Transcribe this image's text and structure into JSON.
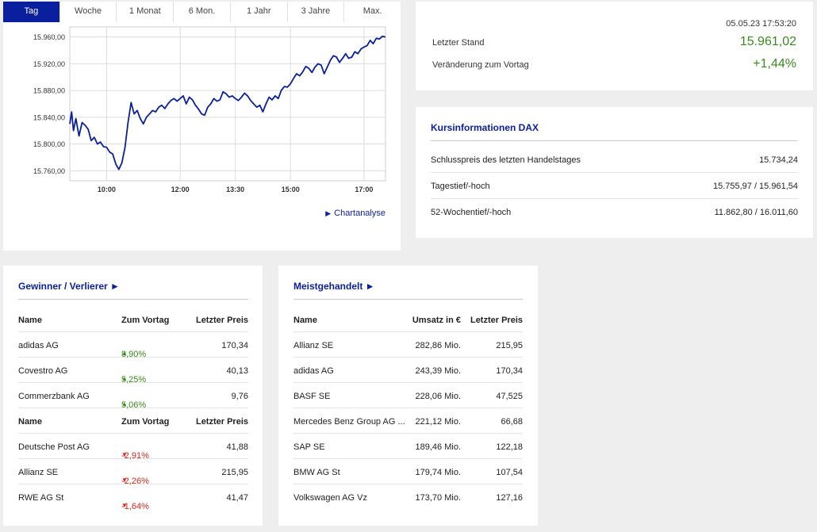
{
  "tabs": [
    "Tag",
    "Woche",
    "1 Monat",
    "6 Mon.",
    "1 Jahr",
    "3 Jahre",
    "Max."
  ],
  "active_tab": 0,
  "chart_link": "Chartanalyse",
  "chart_data": {
    "type": "line",
    "title": "",
    "xlabel": "",
    "ylabel": "",
    "x_ticks": [
      "10:00",
      "12:00",
      "13:30",
      "15:00",
      "17:00"
    ],
    "y_ticks": [
      "15.760,00",
      "15.800,00",
      "15.840,00",
      "15.880,00",
      "15.920,00",
      "15.960,00"
    ],
    "ylim": [
      15745,
      15975
    ],
    "xlim": [
      "09:00",
      "17:35"
    ],
    "grid": true,
    "series": [
      {
        "color": "#0a1f9e",
        "x": [
          "09:00",
          "09:03",
          "09:06",
          "09:10",
          "09:15",
          "09:20",
          "09:25",
          "09:30",
          "09:35",
          "09:40",
          "09:45",
          "09:50",
          "09:55",
          "10:00",
          "10:05",
          "10:10",
          "10:15",
          "10:20",
          "10:25",
          "10:30",
          "10:35",
          "10:40",
          "10:45",
          "10:50",
          "10:55",
          "11:00",
          "11:05",
          "11:10",
          "11:15",
          "11:20",
          "11:25",
          "11:30",
          "11:35",
          "11:40",
          "11:45",
          "11:50",
          "11:55",
          "12:00",
          "12:05",
          "12:10",
          "12:15",
          "12:20",
          "12:25",
          "12:30",
          "12:35",
          "12:40",
          "12:45",
          "12:50",
          "12:55",
          "13:00",
          "13:05",
          "13:10",
          "13:15",
          "13:20",
          "13:25",
          "13:30",
          "13:35",
          "13:40",
          "13:45",
          "13:50",
          "13:55",
          "14:00",
          "14:05",
          "14:10",
          "14:15",
          "14:20",
          "14:25",
          "14:30",
          "14:35",
          "14:40",
          "14:45",
          "14:50",
          "14:55",
          "15:00",
          "15:05",
          "15:10",
          "15:15",
          "15:20",
          "15:25",
          "15:30",
          "15:35",
          "15:40",
          "15:45",
          "15:50",
          "15:55",
          "16:00",
          "16:05",
          "16:10",
          "16:15",
          "16:20",
          "16:25",
          "16:30",
          "16:35",
          "16:40",
          "16:45",
          "16:50",
          "16:55",
          "17:00",
          "17:05",
          "17:10",
          "17:15",
          "17:20",
          "17:25",
          "17:30",
          "17:35"
        ],
        "y": [
          15830,
          15848,
          15820,
          15838,
          15812,
          15832,
          15828,
          15822,
          15805,
          15810,
          15800,
          15803,
          15796,
          15795,
          15788,
          15785,
          15770,
          15762,
          15772,
          15795,
          15832,
          15862,
          15845,
          15850,
          15838,
          15830,
          15840,
          15845,
          15850,
          15848,
          15855,
          15858,
          15853,
          15860,
          15865,
          15868,
          15864,
          15868,
          15872,
          15860,
          15870,
          15866,
          15858,
          15852,
          15845,
          15843,
          15855,
          15860,
          15868,
          15864,
          15866,
          15878,
          15875,
          15870,
          15872,
          15868,
          15865,
          15870,
          15876,
          15872,
          15865,
          15860,
          15855,
          15858,
          15848,
          15860,
          15870,
          15866,
          15872,
          15868,
          15880,
          15886,
          15885,
          15890,
          15898,
          15905,
          15902,
          15908,
          15916,
          15913,
          15907,
          15915,
          15920,
          15918,
          15905,
          15915,
          15925,
          15932,
          15930,
          15922,
          15928,
          15935,
          15928,
          15930,
          15938,
          15935,
          15942,
          15945,
          15947,
          15955,
          15950,
          15958,
          15957,
          15961,
          15960
        ]
      }
    ]
  },
  "quote": {
    "timestamp": "05.05.23 17:53:20",
    "last_label": "Letzter Stand",
    "last_value": "15.961,02",
    "change_label": "Veränderung zum Vortag",
    "change_value": "+1,44%"
  },
  "info": {
    "title": "Kursinformationen DAX",
    "rows": [
      {
        "label": "Schlusspreis des letzten Handelstages",
        "value": "15.734,24"
      },
      {
        "label": "Tagestief/-hoch",
        "value": "15.755,97 / 15.961,54"
      },
      {
        "label": "52-Wochentief/-hoch",
        "value": "11.862,80 / 16.011,60"
      }
    ]
  },
  "gainers_losers": {
    "title": "Gewinner / Verlierer ►",
    "header": [
      "Name",
      "Zum Vortag",
      "Letzter Preis"
    ],
    "gainers": [
      {
        "name": "adidas AG",
        "change": "8,90%",
        "price": "170,34"
      },
      {
        "name": "Covestro AG",
        "change": "5,25%",
        "price": "40,13"
      },
      {
        "name": "Commerzbank AG",
        "change": "5,06%",
        "price": "9,76"
      }
    ],
    "losers": [
      {
        "name": "Deutsche Post AG",
        "change": "-2,91%",
        "price": "41,88"
      },
      {
        "name": "Allianz SE",
        "change": "-2,26%",
        "price": "215,95"
      },
      {
        "name": "RWE AG St",
        "change": "-1,64%",
        "price": "41,47"
      }
    ],
    "up_arrow": "▲",
    "down_arrow": "▼",
    "up_color": "#3a8a1f",
    "down_color": "#d9261c"
  },
  "most_traded": {
    "title": "Meistgehandelt ►",
    "header": [
      "Name",
      "Umsatz in €",
      "Letzter Preis"
    ],
    "rows": [
      {
        "name": "Allianz SE",
        "volume": "282,86 Mio.",
        "price": "215,95"
      },
      {
        "name": "adidas AG",
        "volume": "243,39 Mio.",
        "price": "170,34"
      },
      {
        "name": "BASF SE",
        "volume": "228,06 Mio.",
        "price": "47,525"
      },
      {
        "name": "Mercedes Benz Group AG ...",
        "volume": "221,12 Mio.",
        "price": "66,68"
      },
      {
        "name": "SAP SE",
        "volume": "189,46 Mio.",
        "price": "122,18"
      },
      {
        "name": "BMW AG St",
        "volume": "179,74 Mio.",
        "price": "107,54"
      },
      {
        "name": "Volkswagen AG Vz",
        "volume": "173,70 Mio.",
        "price": "127,16"
      }
    ]
  },
  "colors": {
    "accent": "#0a1f9e",
    "positive": "#3a8a1f",
    "negative": "#d9261c"
  }
}
